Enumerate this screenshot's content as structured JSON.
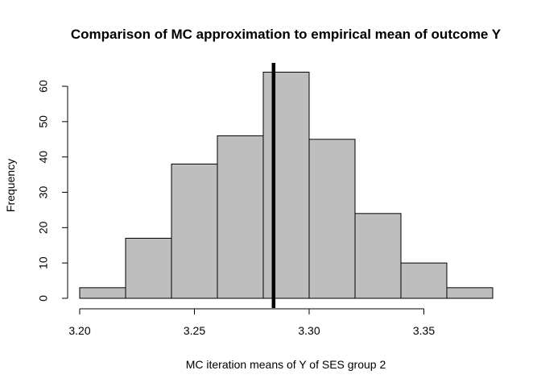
{
  "chart_data": {
    "type": "bar",
    "title": "Comparison of MC approximation to empirical mean of outcome Y",
    "xlabel": "MC iteration means of Y of SES group 2",
    "ylabel": "Frequency",
    "bins": [
      {
        "start": 3.2,
        "end": 3.22,
        "count": 3
      },
      {
        "start": 3.22,
        "end": 3.24,
        "count": 17
      },
      {
        "start": 3.24,
        "end": 3.26,
        "count": 38
      },
      {
        "start": 3.26,
        "end": 3.28,
        "count": 46
      },
      {
        "start": 3.28,
        "end": 3.3,
        "count": 64
      },
      {
        "start": 3.3,
        "end": 3.32,
        "count": 45
      },
      {
        "start": 3.32,
        "end": 3.34,
        "count": 24
      },
      {
        "start": 3.34,
        "end": 3.36,
        "count": 10
      },
      {
        "start": 3.36,
        "end": 3.38,
        "count": 3
      }
    ],
    "xlim": [
      3.2,
      3.38
    ],
    "ylim": [
      0,
      64
    ],
    "x_ticks": [
      "3.20",
      "3.25",
      "3.30",
      "3.35"
    ],
    "y_ticks": [
      "0",
      "10",
      "20",
      "30",
      "40",
      "50",
      "60"
    ],
    "reference_line": {
      "x": 3.2845
    },
    "bar_color": "#bebebe",
    "grid": false
  }
}
